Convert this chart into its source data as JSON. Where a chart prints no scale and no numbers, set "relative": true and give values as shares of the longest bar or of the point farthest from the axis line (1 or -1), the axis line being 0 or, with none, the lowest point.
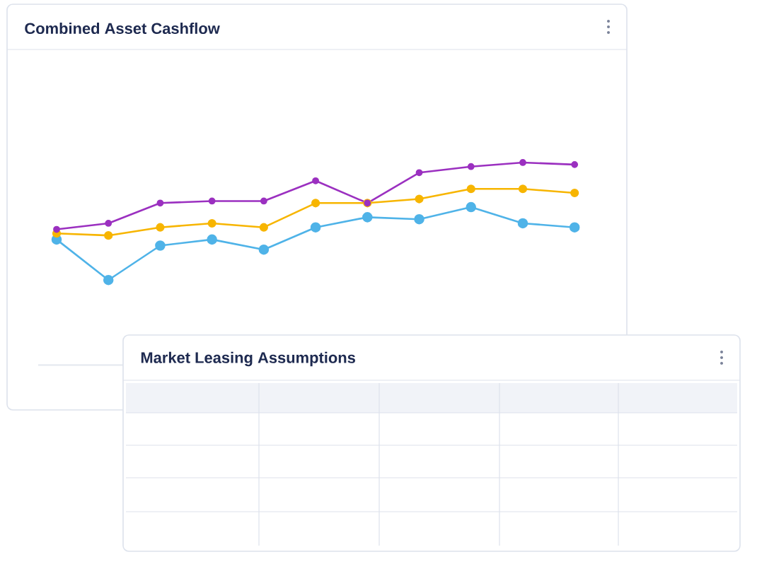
{
  "chart_data": [
    {
      "type": "line",
      "title": "Combined Asset Cashflow",
      "relative": true,
      "marker": "circle",
      "categories": [
        null,
        null,
        null,
        null,
        null,
        null,
        null,
        null,
        null,
        null,
        null
      ],
      "series": [
        {
          "color": "#9b30c0",
          "values": [
            0.67,
            0.7,
            0.8,
            0.81,
            0.81,
            0.91,
            0.8,
            0.95,
            0.98,
            1.0,
            0.99
          ]
        },
        {
          "color": "#f7b500",
          "values": [
            0.65,
            0.64,
            0.68,
            0.7,
            0.68,
            0.8,
            0.8,
            0.82,
            0.87,
            0.87,
            0.85
          ]
        },
        {
          "color": "#4fb3e8",
          "values": [
            0.62,
            0.42,
            0.59,
            0.62,
            0.57,
            0.68,
            0.73,
            0.72,
            0.78,
            0.7,
            0.68
          ]
        }
      ]
    },
    {
      "type": "other",
      "title": "Market Leasing Assumptions"
    }
  ]
}
